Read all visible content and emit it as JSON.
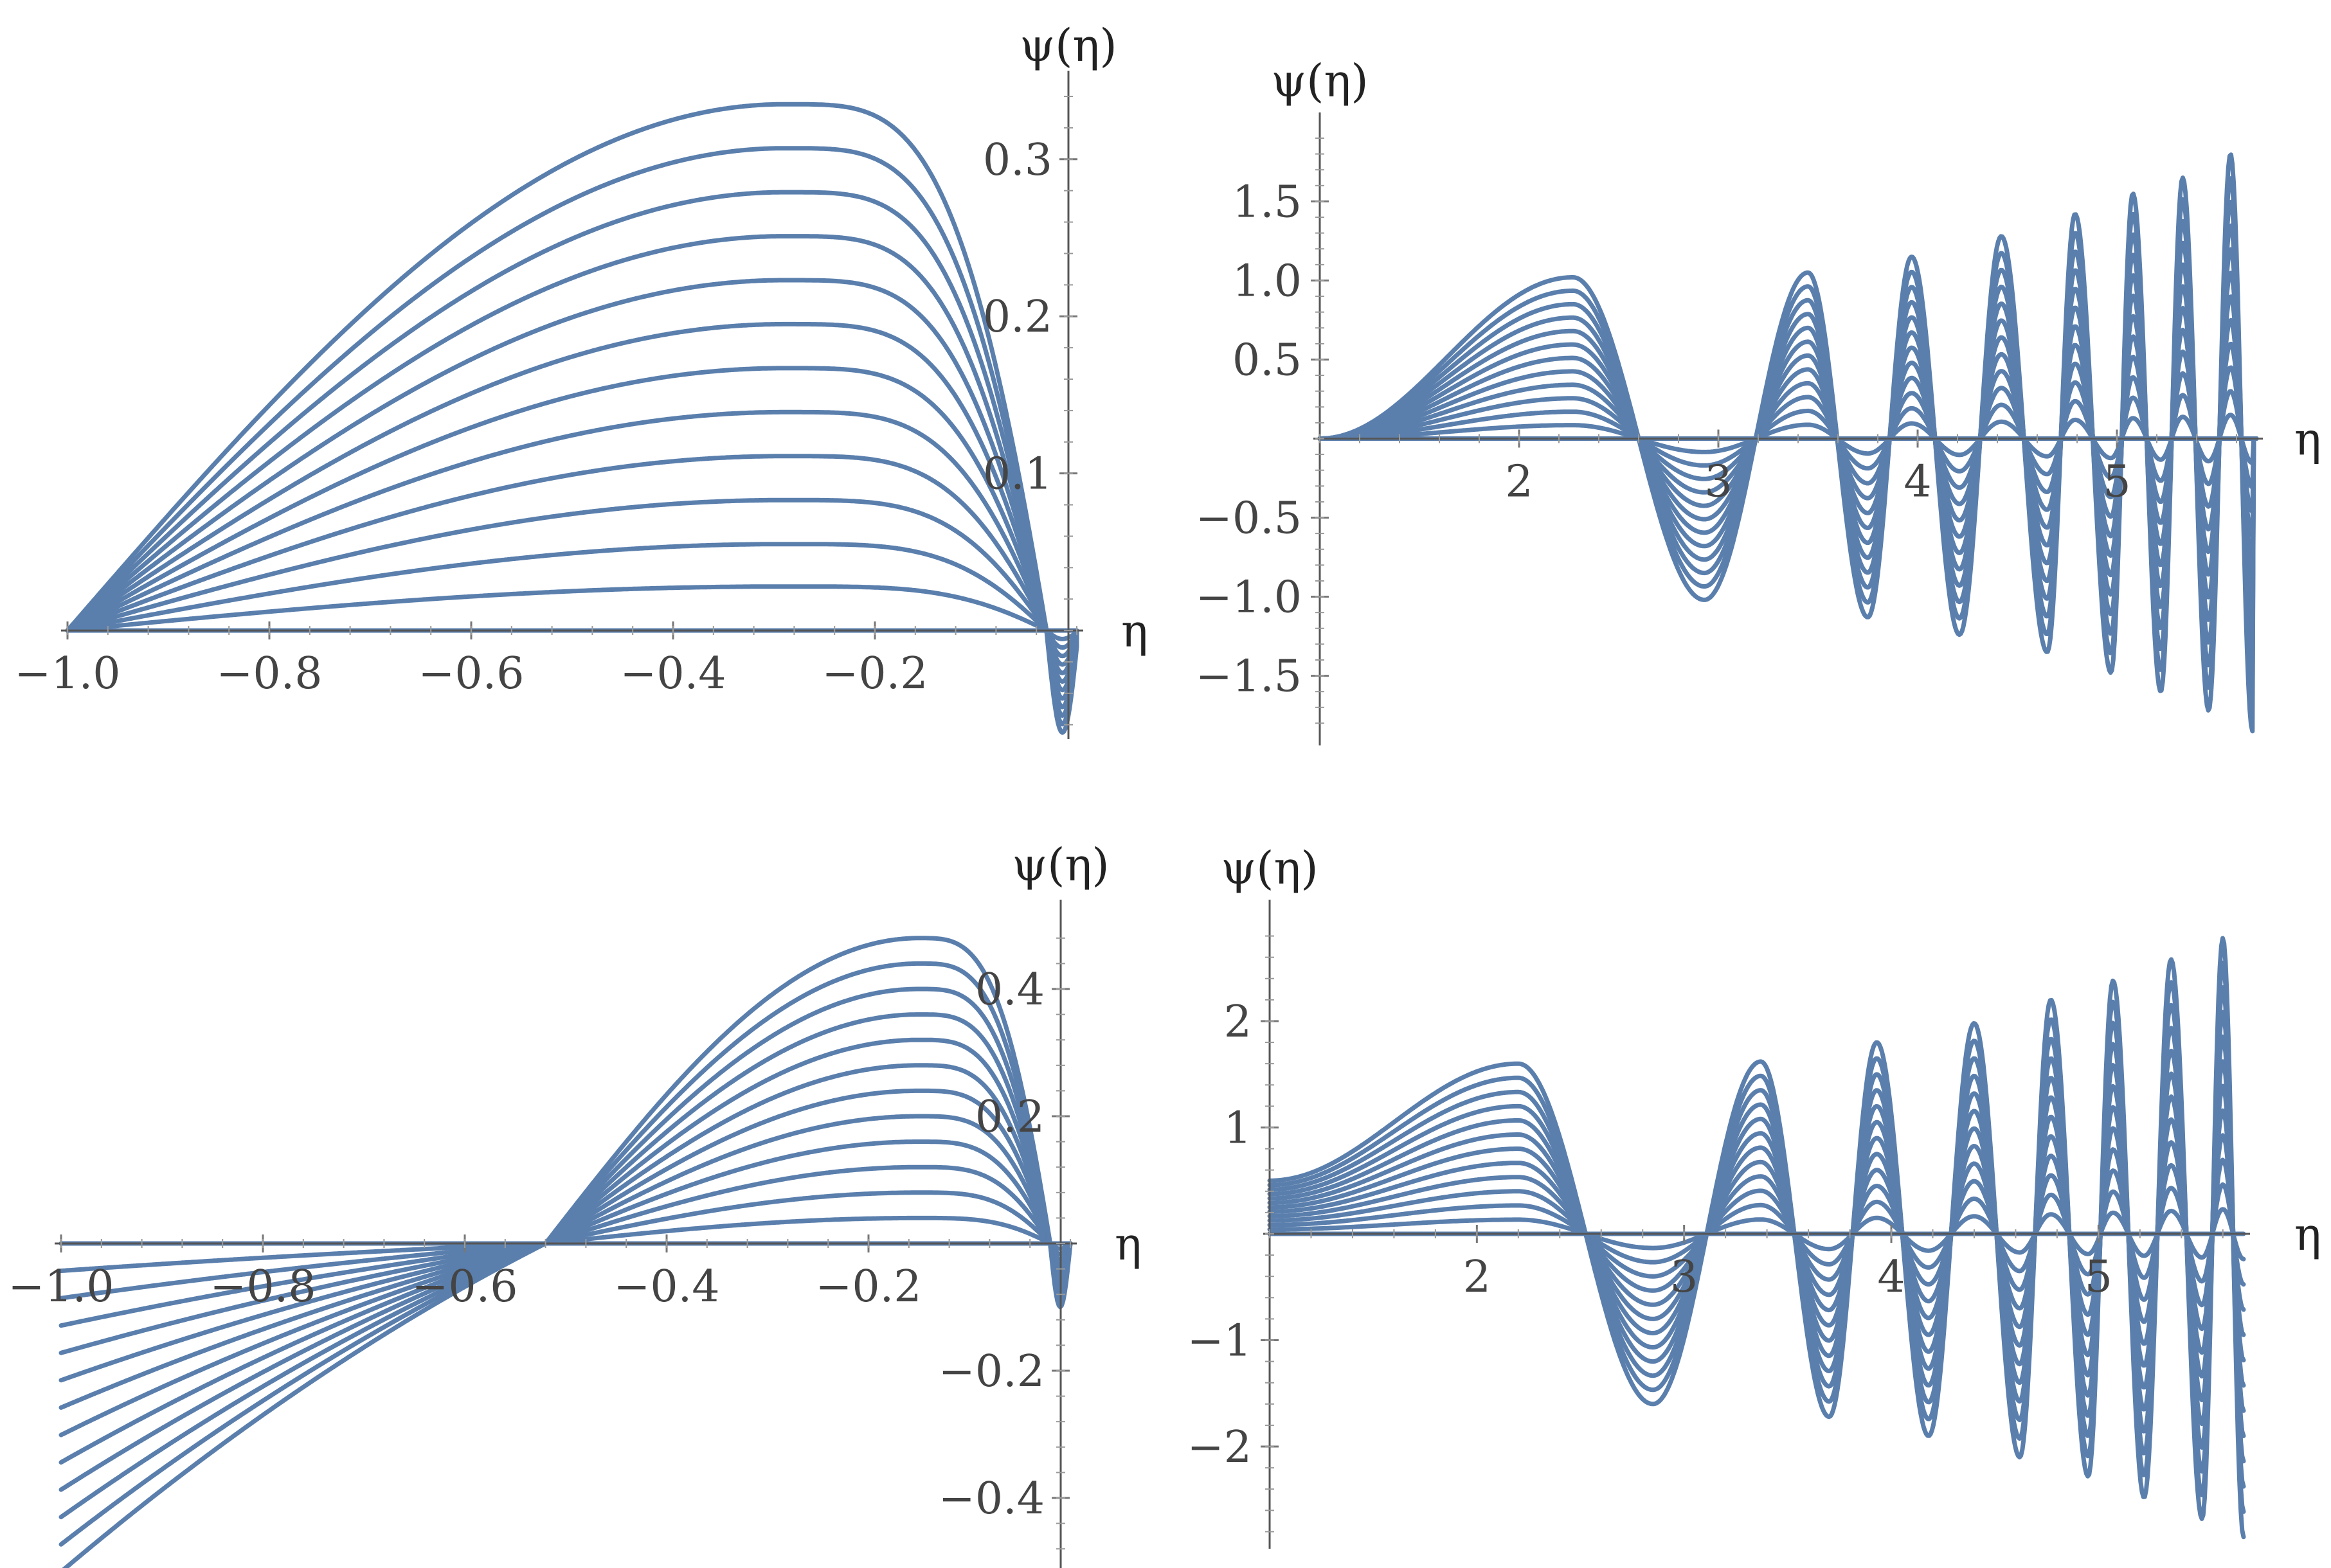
{
  "colors": {
    "curve": "#5a7fad",
    "axis": "#555555",
    "text": "#444444"
  },
  "chart_data": [
    {
      "type": "line",
      "ylabel": "ψ(η)",
      "xlabel": "η",
      "xlim": [
        -1.0,
        0.0
      ],
      "ylim": [
        -0.065,
        0.34
      ],
      "x_ticks": [
        -1.0,
        -0.8,
        -0.6,
        -0.4,
        -0.2
      ],
      "x_tick_labels": [
        "−1.0",
        "−0.8",
        "−0.6",
        "−0.4",
        "−0.2"
      ],
      "y_ticks": [
        0.1,
        0.2,
        0.3
      ],
      "y_tick_labels": [
        "0.1",
        "0.2",
        "0.3"
      ],
      "grid": false,
      "family": {
        "count": 13,
        "peak_x": -0.29,
        "peak_values": [
          0.0,
          0.028,
          0.055,
          0.083,
          0.111,
          0.139,
          0.167,
          0.195,
          0.223,
          0.251,
          0.279,
          0.307,
          0.335
        ],
        "left_zero": -1.0,
        "right_zero": -0.03,
        "dip_at_right_end": -0.065
      }
    },
    {
      "type": "line",
      "ylabel": "ψ(η)",
      "xlabel": "η",
      "xlim": [
        1.0,
        5.7
      ],
      "ylim": [
        -1.9,
        1.9
      ],
      "x_ticks": [
        2,
        3,
        4,
        5
      ],
      "x_tick_labels": [
        "2",
        "3",
        "4",
        "5"
      ],
      "y_ticks": [
        -1.5,
        -1.0,
        -0.5,
        0.5,
        1.0,
        1.5
      ],
      "y_tick_labels": [
        "−1.5",
        "−1.0",
        "−0.5",
        "0.5",
        "1.0",
        "1.5"
      ],
      "grid": false,
      "family": {
        "count": 13,
        "first_peak": {
          "x": 2.27,
          "max_value": 1.02
        },
        "zeros": [
          2.63,
          3.23,
          3.67,
          4.12,
          4.55,
          4.98,
          5.4
        ],
        "extrema": [
          {
            "x": 2.93,
            "max_value": -1.02
          },
          {
            "x": 3.45,
            "max_value": 1.05
          },
          {
            "x": 3.75,
            "max_value": -1.13
          },
          {
            "x": 3.97,
            "max_value": 1.15
          },
          {
            "x": 4.21,
            "max_value": -1.24
          },
          {
            "x": 4.42,
            "max_value": 1.28
          },
          {
            "x": 4.65,
            "max_value": -1.35
          },
          {
            "x": 4.79,
            "max_value": 1.42
          },
          {
            "x": 4.97,
            "max_value": -1.48
          },
          {
            "x": 5.08,
            "max_value": 1.55
          },
          {
            "x": 5.22,
            "max_value": -1.6
          },
          {
            "x": 5.33,
            "max_value": 1.65
          },
          {
            "x": 5.46,
            "max_value": -1.72
          },
          {
            "x": 5.57,
            "max_value": 1.8
          },
          {
            "x": 5.68,
            "max_value": -1.85
          }
        ]
      }
    },
    {
      "type": "line",
      "ylabel": "ψ(η)",
      "xlabel": "η",
      "xlim": [
        -1.0,
        0.0
      ],
      "ylim": [
        -0.5,
        0.5
      ],
      "x_ticks": [
        -1.0,
        -0.8,
        -0.6,
        -0.4,
        -0.2
      ],
      "x_tick_labels": [
        "−1.0",
        "−0.8",
        "−0.6",
        "−0.4",
        "−0.2"
      ],
      "y_ticks": [
        -0.4,
        -0.2,
        0.2,
        0.4
      ],
      "y_tick_labels": [
        "−0.4",
        "−0.2",
        "0.2",
        "0.4"
      ],
      "grid": false,
      "family": {
        "count": 13,
        "crossing_x": -0.52,
        "peak_x": -0.15,
        "peak_values": [
          0.0,
          0.04,
          0.08,
          0.12,
          0.16,
          0.2,
          0.24,
          0.28,
          0.32,
          0.36,
          0.4,
          0.44,
          0.48
        ],
        "left_values": [
          0.0,
          -0.043,
          -0.086,
          -0.129,
          -0.172,
          -0.215,
          -0.258,
          -0.301,
          -0.344,
          -0.387,
          -0.43,
          -0.473,
          -0.516
        ],
        "right_zero": -0.02
      }
    },
    {
      "type": "line",
      "ylabel": "ψ(η)",
      "xlabel": "η",
      "xlim": [
        1.0,
        5.7
      ],
      "ylim": [
        -2.9,
        2.9
      ],
      "x_ticks": [
        2,
        3,
        4,
        5
      ],
      "x_tick_labels": [
        "2",
        "3",
        "4",
        "5"
      ],
      "y_ticks": [
        -2,
        -1,
        1,
        2
      ],
      "y_tick_labels": [
        "−2",
        "−1",
        "1",
        "2"
      ],
      "grid": false,
      "family": {
        "count": 13,
        "start_value_max": 0.5,
        "first_peak": {
          "x": 2.2,
          "max_value": 1.6
        },
        "zeros": [
          2.6,
          3.15,
          3.6,
          4.05,
          4.5,
          4.95,
          5.38
        ],
        "extrema": [
          {
            "x": 2.85,
            "max_value": -1.6
          },
          {
            "x": 3.37,
            "max_value": 1.62
          },
          {
            "x": 3.7,
            "max_value": -1.72
          },
          {
            "x": 3.93,
            "max_value": 1.8
          },
          {
            "x": 4.18,
            "max_value": -1.9
          },
          {
            "x": 4.4,
            "max_value": 1.98
          },
          {
            "x": 4.62,
            "max_value": -2.1
          },
          {
            "x": 4.77,
            "max_value": 2.2
          },
          {
            "x": 4.95,
            "max_value": -2.28
          },
          {
            "x": 5.07,
            "max_value": 2.38
          },
          {
            "x": 5.22,
            "max_value": -2.48
          },
          {
            "x": 5.35,
            "max_value": 2.58
          },
          {
            "x": 5.5,
            "max_value": -2.68
          },
          {
            "x": 5.6,
            "max_value": 2.78
          },
          {
            "x": 5.7,
            "max_value": -2.85
          }
        ]
      }
    }
  ]
}
